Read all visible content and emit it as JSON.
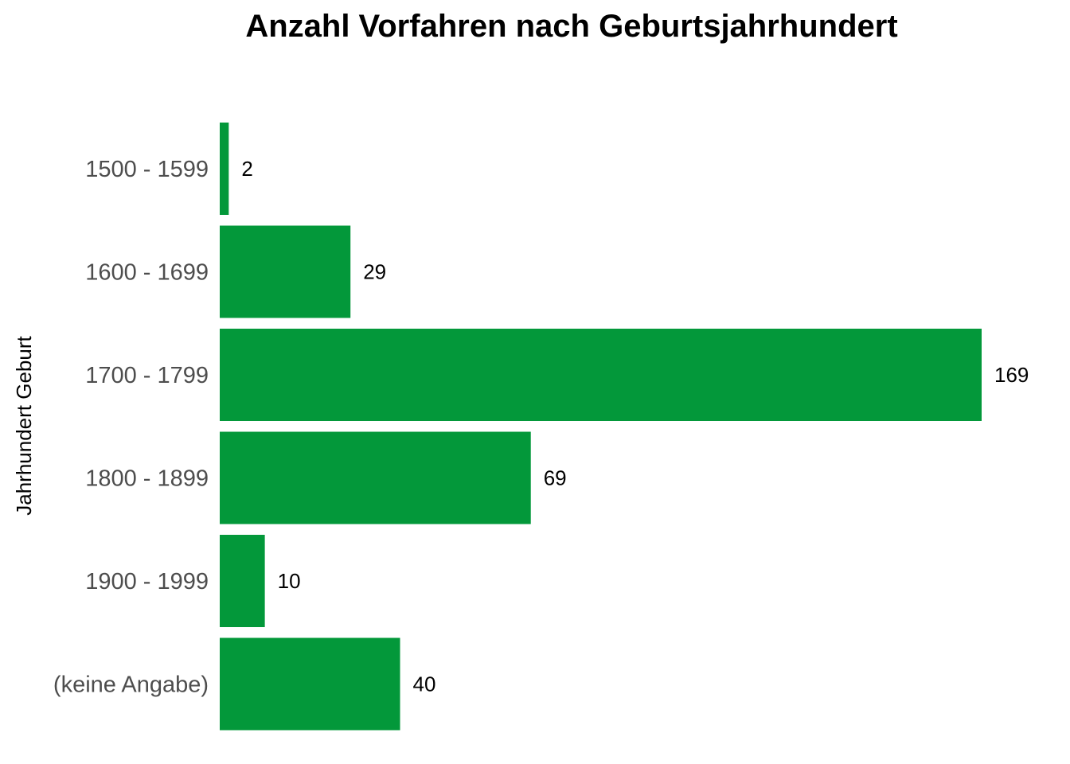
{
  "chart_data": {
    "type": "bar",
    "orientation": "horizontal",
    "title": "Anzahl Vorfahren nach Geburtsjahrhundert",
    "xlabel": "",
    "ylabel": "Jahrhundert Geburt",
    "categories": [
      "1500 - 1599",
      "1600 - 1699",
      "1700 - 1799",
      "1800 - 1899",
      "1900 - 1999",
      "(keine Angabe)"
    ],
    "values": [
      2,
      29,
      169,
      69,
      10,
      40
    ],
    "xlim": [
      0,
      169
    ],
    "bar_color": "#03983A",
    "grid": false,
    "data_labels": true
  }
}
